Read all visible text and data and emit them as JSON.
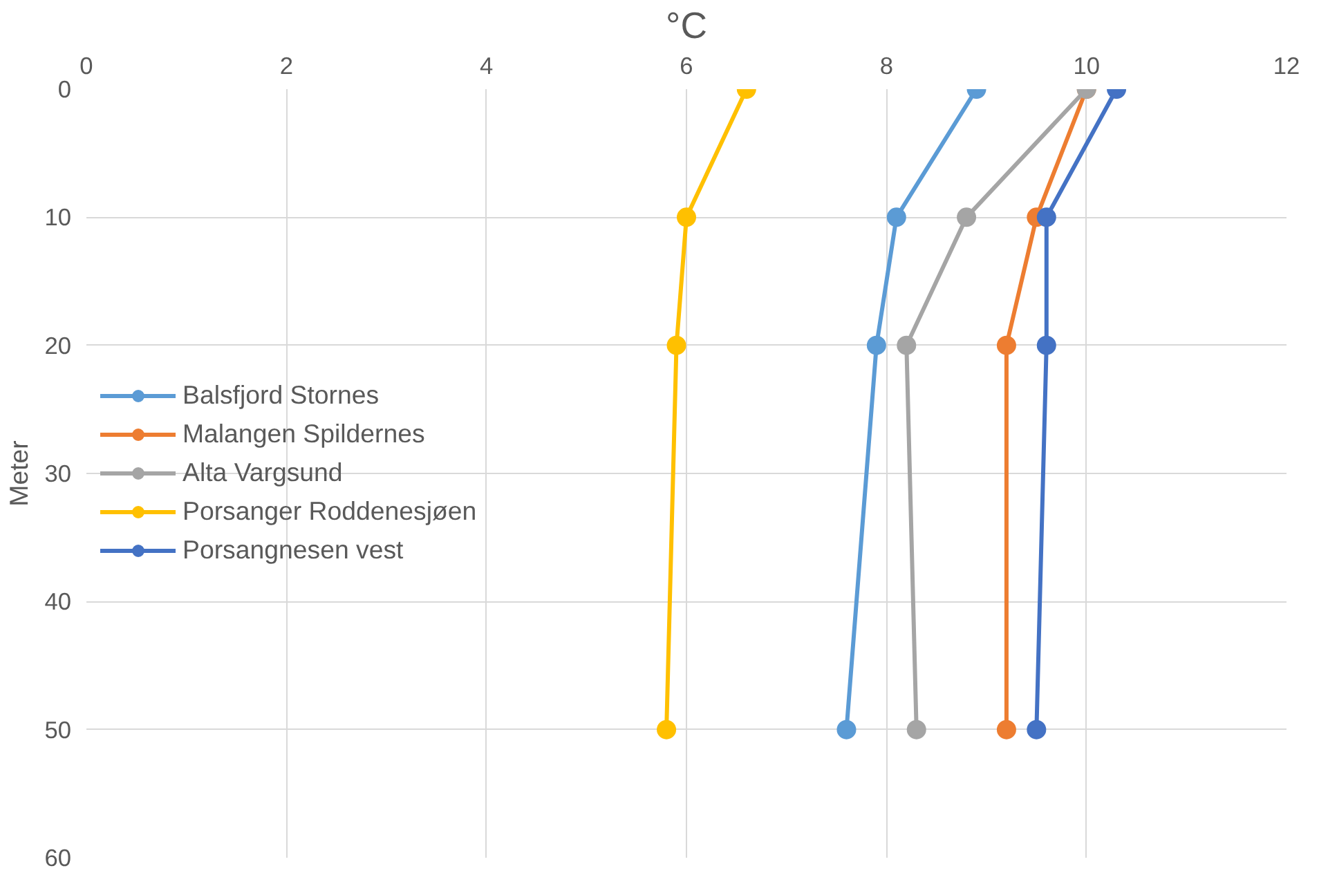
{
  "chart_data": {
    "type": "line",
    "xlabel": "°C",
    "ylabel": "Meter",
    "xlim": [
      0,
      12
    ],
    "xticks": [
      0,
      2,
      4,
      6,
      8,
      10,
      12
    ],
    "ylim": [
      60,
      0
    ],
    "yticks": [
      0,
      10,
      20,
      30,
      40,
      50,
      60
    ],
    "grid": true,
    "legend": "left",
    "marker": "circle",
    "line_style": "solid",
    "series": [
      {
        "name": "Balsfjord Stornes",
        "color": "#5b9bd5",
        "x": [
          8.9,
          8.1,
          7.9,
          7.6
        ],
        "values": [
          0,
          10,
          20,
          50
        ]
      },
      {
        "name": "Malangen Spildernes",
        "color": "#ed7d31",
        "x": [
          10.0,
          9.5,
          9.2,
          9.2
        ],
        "values": [
          0,
          10,
          20,
          50
        ]
      },
      {
        "name": "Alta Vargsund",
        "color": "#a5a5a5",
        "x": [
          10.0,
          8.8,
          8.2,
          8.3
        ],
        "values": [
          0,
          10,
          20,
          50
        ]
      },
      {
        "name": "Porsanger Roddenesjøen",
        "color": "#ffc000",
        "x": [
          6.6,
          6.0,
          5.9,
          5.8
        ],
        "values": [
          0,
          10,
          20,
          50
        ]
      },
      {
        "name": "Porsangnesen vest",
        "color": "#4472c4",
        "x": [
          10.3,
          9.6,
          9.6,
          9.5
        ],
        "values": [
          0,
          10,
          20,
          50
        ]
      }
    ]
  }
}
